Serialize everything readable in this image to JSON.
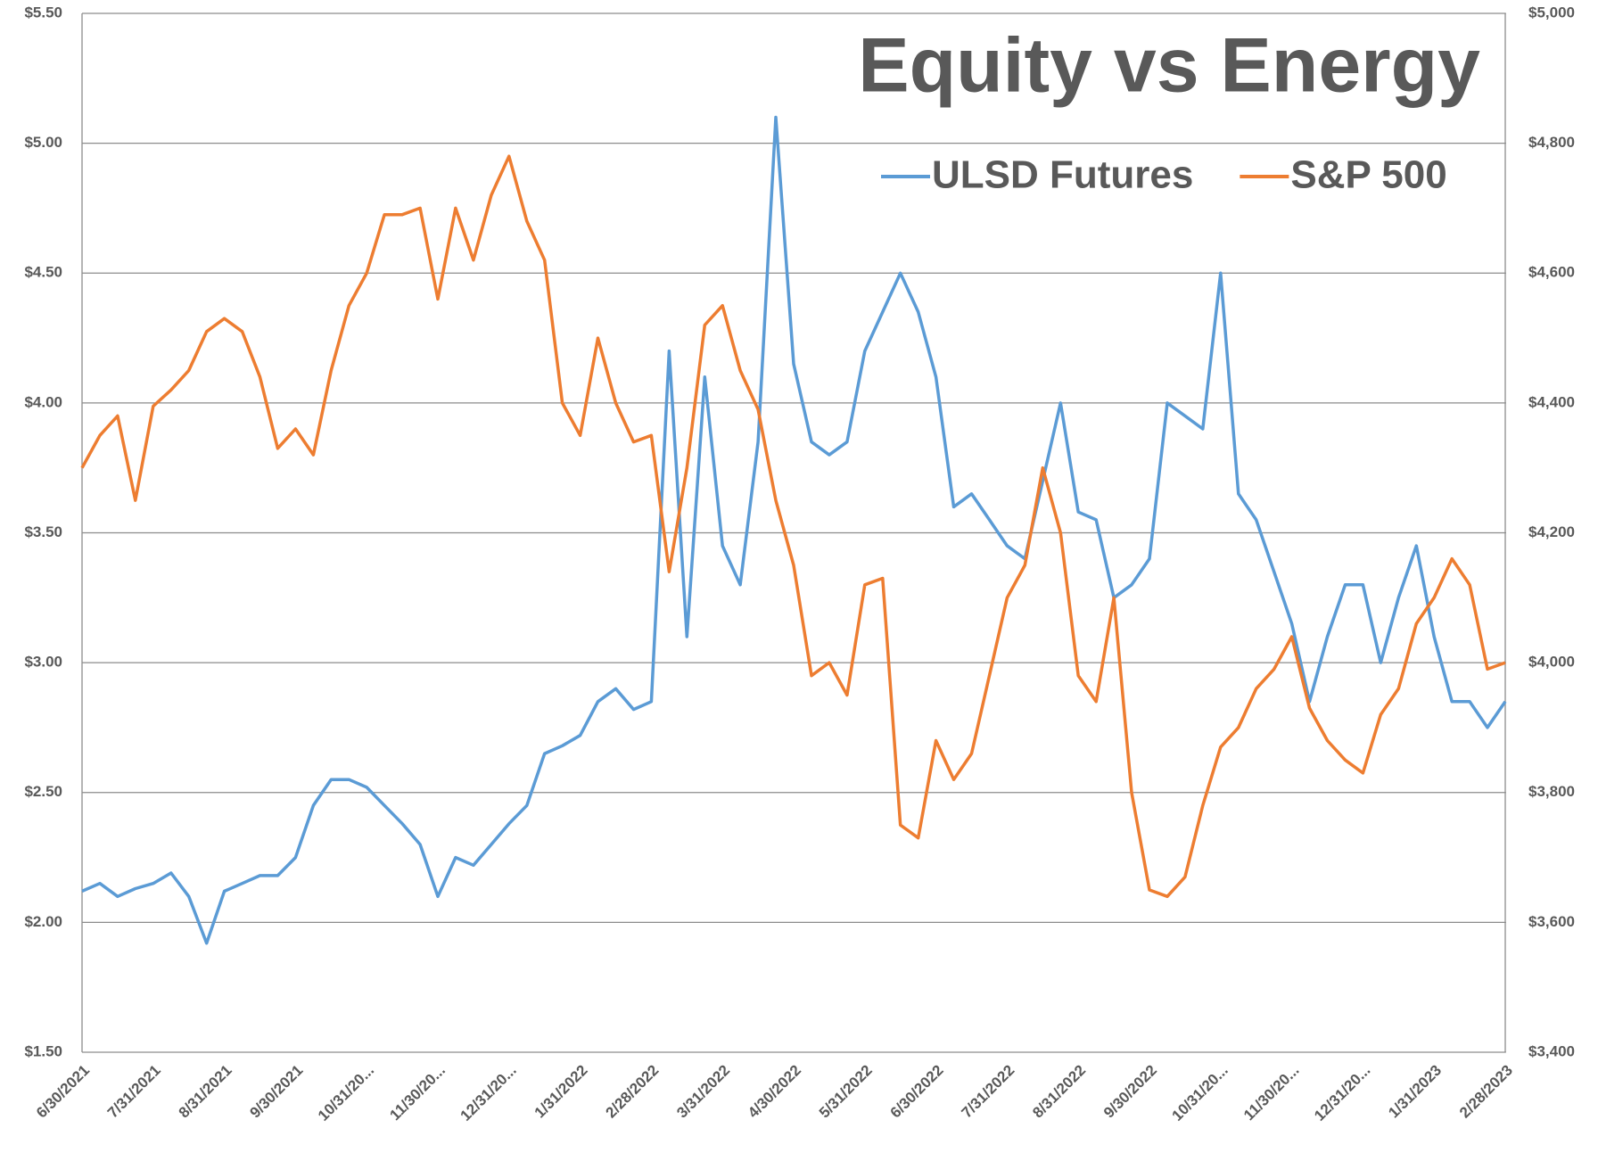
{
  "chart_data": {
    "type": "line",
    "title": "Equity vs Energy",
    "categories": [
      "6/30/2021",
      null,
      null,
      null,
      "7/31/2021",
      null,
      null,
      null,
      "8/31/2021",
      null,
      null,
      null,
      "9/30/2021",
      null,
      null,
      null,
      "10/31/20...",
      null,
      null,
      null,
      "11/30/20...",
      null,
      null,
      null,
      "12/31/20...",
      null,
      null,
      null,
      "1/31/2022",
      null,
      null,
      null,
      "2/28/2022",
      null,
      null,
      null,
      "3/31/2022",
      null,
      null,
      null,
      "4/30/2022",
      null,
      null,
      null,
      "5/31/2022",
      null,
      null,
      null,
      "6/30/2022",
      null,
      null,
      null,
      "7/31/2022",
      null,
      null,
      null,
      "8/31/2022",
      null,
      null,
      null,
      "9/30/2022",
      null,
      null,
      null,
      "10/31/20...",
      null,
      null,
      null,
      "11/30/20...",
      null,
      null,
      null,
      "12/31/20...",
      null,
      null,
      null,
      "1/31/2023",
      null,
      null,
      null,
      "2/28/2023"
    ],
    "series": [
      {
        "name": "ULSD Futures",
        "color": "#5b9bd5",
        "values": [
          2.12,
          2.15,
          2.1,
          2.13,
          2.15,
          2.19,
          2.1,
          1.92,
          2.12,
          2.15,
          2.18,
          2.18,
          2.25,
          2.45,
          2.55,
          2.55,
          2.52,
          2.45,
          2.38,
          2.3,
          2.1,
          2.25,
          2.22,
          2.3,
          2.38,
          2.45,
          2.65,
          2.68,
          2.72,
          2.85,
          2.9,
          2.82,
          2.85,
          4.2,
          3.1,
          4.1,
          3.45,
          3.3,
          3.85,
          5.1,
          4.15,
          3.85,
          3.8,
          3.85,
          4.2,
          4.35,
          4.5,
          4.35,
          4.1,
          3.6,
          3.65,
          3.55,
          3.45,
          3.4,
          3.7,
          4.0,
          3.58,
          3.55,
          3.25,
          3.3,
          3.4,
          4.0,
          3.95,
          3.9,
          4.5,
          3.65,
          3.55,
          3.35,
          3.15,
          2.85,
          3.1,
          3.3,
          3.3,
          3.0,
          3.25,
          3.45,
          3.1,
          2.85,
          2.85,
          2.75,
          2.85
        ]
      },
      {
        "name": "S&P 500",
        "color": "#ed7d31",
        "axis": "y2",
        "values": [
          4300,
          4350,
          4380,
          4250,
          4395,
          4420,
          4450,
          4510,
          4530,
          4510,
          4440,
          4330,
          4360,
          4320,
          4450,
          4550,
          4600,
          4690,
          4690,
          4700,
          4560,
          4700,
          4620,
          4720,
          4780,
          4680,
          4620,
          4400,
          4350,
          4500,
          4400,
          4340,
          4350,
          4140,
          4300,
          4520,
          4550,
          4450,
          4390,
          4250,
          4150,
          3980,
          4000,
          3950,
          4120,
          4130,
          3750,
          3730,
          3880,
          3820,
          3860,
          3980,
          4100,
          4150,
          4300,
          4200,
          3980,
          3940,
          4100,
          3800,
          3650,
          3640,
          3670,
          3780,
          3870,
          3900,
          3960,
          3990,
          4040,
          3930,
          3880,
          3850,
          3830,
          3920,
          3960,
          4060,
          4100,
          4160,
          4120,
          3990,
          4000
        ]
      }
    ],
    "ylim": [
      1.5,
      5.5
    ],
    "yticks": [
      {
        "value": 1.5,
        "label": "$1.50"
      },
      {
        "value": 2,
        "label": "$2.00"
      },
      {
        "value": 2.5,
        "label": "$2.50"
      },
      {
        "value": 3,
        "label": "$3.00"
      },
      {
        "value": 3.5,
        "label": "$3.50"
      },
      {
        "value": 4,
        "label": "$4.00"
      },
      {
        "value": 4.5,
        "label": "$4.50"
      },
      {
        "value": 5,
        "label": "$5.00"
      },
      {
        "value": 5.5,
        "label": "$5.50"
      }
    ],
    "y2lim": [
      3400,
      5000
    ],
    "y2ticks": [
      {
        "value": 3400,
        "label": "$3,400"
      },
      {
        "value": 3600,
        "label": "$3,600"
      },
      {
        "value": 3800,
        "label": "$3,800"
      },
      {
        "value": 4000,
        "label": "$4,000"
      },
      {
        "value": 4200,
        "label": "$4,200"
      },
      {
        "value": 4400,
        "label": "$4,400"
      },
      {
        "value": 4600,
        "label": "$4,600"
      },
      {
        "value": 4800,
        "label": "$4,800"
      },
      {
        "value": 5000,
        "label": "$5,000"
      }
    ],
    "grid": true,
    "legend": "top-right"
  }
}
